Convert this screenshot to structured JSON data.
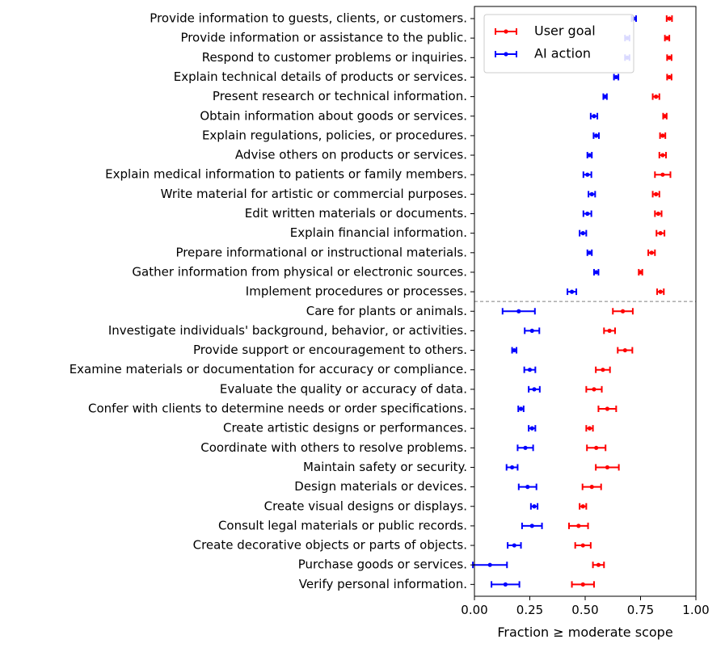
{
  "chart_data": {
    "type": "errorbar",
    "title": "",
    "xlabel": "Fraction ≥ moderate scope",
    "xlim": [
      0,
      1
    ],
    "xticks": [
      "0.00",
      "0.25",
      "0.50",
      "0.75",
      "1.00"
    ],
    "xtick_values": [
      0,
      0.25,
      0.5,
      0.75,
      1.0
    ],
    "legend_position": "top-right",
    "divider_after_index": 14,
    "categories": [
      "Provide information to guests, clients, or customers.",
      "Provide information or assistance to the public.",
      "Respond to customer problems or inquiries.",
      "Explain technical details of products or services.",
      "Present research or technical information.",
      "Obtain information about goods or services.",
      "Explain regulations, policies, or procedures.",
      "Advise others on products or services.",
      "Explain medical information to patients or family members.",
      "Write material for artistic or commercial purposes.",
      "Edit written materials or documents.",
      "Explain financial information.",
      "Prepare informational or instructional materials.",
      "Gather information from physical or electronic sources.",
      "Implement procedures or processes.",
      "Care for plants or animals.",
      "Investigate individuals' background, behavior, or activities.",
      "Provide support or encouragement to others.",
      "Examine materials or documentation for accuracy or compliance.",
      "Evaluate the quality or accuracy of data.",
      "Confer with clients to determine needs or order specifications.",
      "Create artistic designs or performances.",
      "Coordinate with others to resolve problems.",
      "Maintain safety or security.",
      "Design materials or devices.",
      "Create visual designs or displays.",
      "Consult legal materials or public records.",
      "Create decorative objects or parts of objects.",
      "Purchase goods or services.",
      "Verify personal information."
    ],
    "series": [
      {
        "name": "User goal",
        "color": "#ff0000",
        "values": [
          0.88,
          0.87,
          0.88,
          0.88,
          0.82,
          0.86,
          0.85,
          0.85,
          0.85,
          0.82,
          0.83,
          0.84,
          0.8,
          0.75,
          0.84,
          0.67,
          0.61,
          0.68,
          0.58,
          0.54,
          0.6,
          0.52,
          0.55,
          0.6,
          0.53,
          0.49,
          0.47,
          0.49,
          0.56,
          0.49
        ],
        "errors": [
          0.012,
          0.01,
          0.01,
          0.01,
          0.015,
          0.008,
          0.012,
          0.015,
          0.035,
          0.015,
          0.015,
          0.018,
          0.015,
          0.008,
          0.015,
          0.045,
          0.025,
          0.033,
          0.032,
          0.035,
          0.04,
          0.015,
          0.042,
          0.052,
          0.042,
          0.015,
          0.043,
          0.035,
          0.025,
          0.05
        ]
      },
      {
        "name": "AI action",
        "color": "#0000ff",
        "values": [
          0.72,
          0.69,
          0.69,
          0.64,
          0.59,
          0.54,
          0.55,
          0.52,
          0.51,
          0.53,
          0.51,
          0.49,
          0.52,
          0.55,
          0.44,
          0.2,
          0.26,
          0.18,
          0.25,
          0.27,
          0.21,
          0.26,
          0.23,
          0.17,
          0.24,
          0.27,
          0.26,
          0.18,
          0.07,
          0.14
        ],
        "errors": [
          0.01,
          0.01,
          0.01,
          0.01,
          0.008,
          0.015,
          0.012,
          0.01,
          0.018,
          0.015,
          0.018,
          0.015,
          0.01,
          0.01,
          0.02,
          0.073,
          0.033,
          0.01,
          0.025,
          0.025,
          0.012,
          0.015,
          0.035,
          0.025,
          0.04,
          0.015,
          0.045,
          0.03,
          0.077,
          0.063
        ]
      }
    ]
  }
}
